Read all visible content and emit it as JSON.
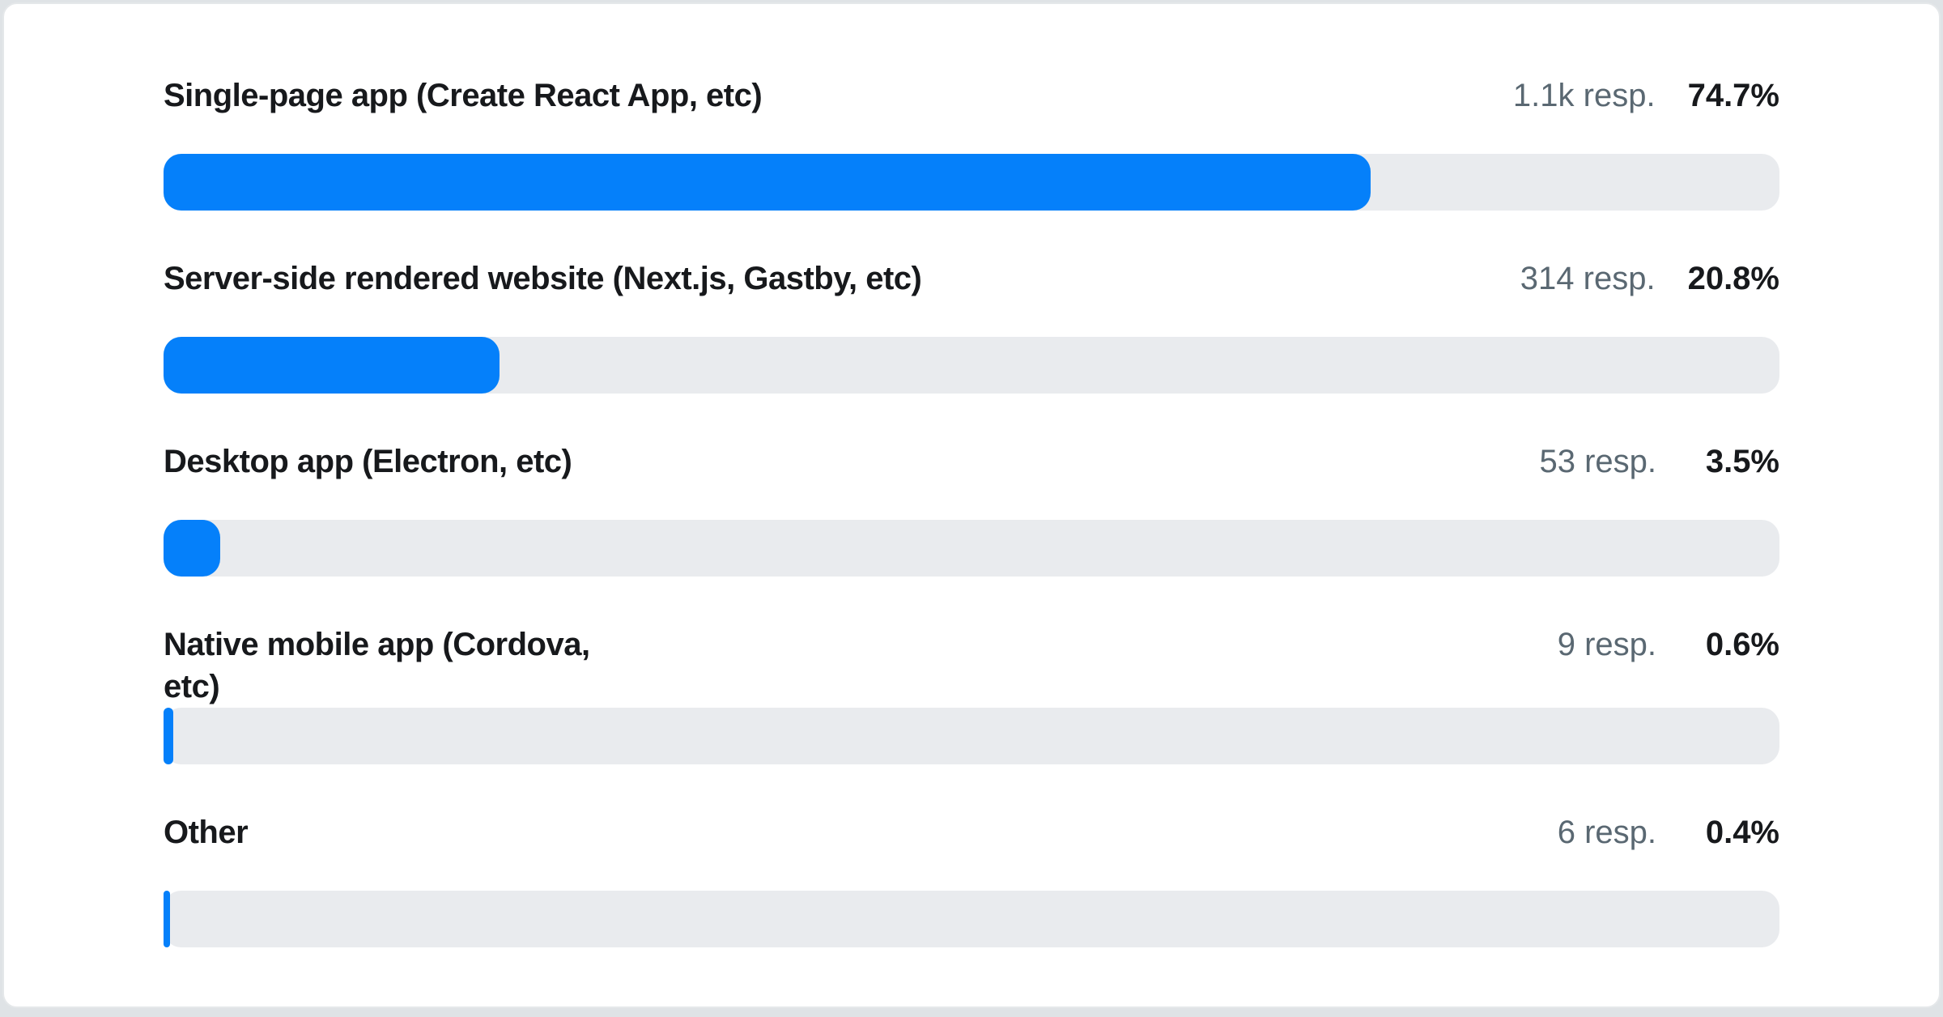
{
  "chart_data": {
    "type": "bar",
    "orientation": "horizontal",
    "title": "",
    "unit": "%",
    "xlim": [
      0,
      100
    ],
    "grid": false,
    "legend": "none",
    "categories": [
      "Single-page app (Create React App, etc)",
      "Server-side rendered website (Next.js, Gastby, etc)",
      "Desktop app (Electron, etc)",
      "Native mobile app (Cordova, etc)",
      "Other"
    ],
    "values": [
      74.7,
      20.8,
      3.5,
      0.6,
      0.4
    ],
    "value_labels": [
      "74.7%",
      "20.8%",
      "3.5%",
      "0.6%",
      "0.4%"
    ],
    "response_counts": [
      "1.1k resp.",
      "314 resp.",
      "53 resp.",
      "9 resp.",
      "6 resp."
    ]
  },
  "rows": [
    {
      "label": "Single-page app (Create React App, etc)",
      "label_lines": [
        "Single-page app (Create React App, etc)"
      ],
      "responses": "1.1k resp.",
      "percent": "74.7%",
      "value": 74.7
    },
    {
      "label": "Server-side rendered website (Next.js, Gastby, etc)",
      "label_lines": [
        "Server-side rendered website (Next.js, Gastby, etc)"
      ],
      "responses": "314 resp.",
      "percent": "20.8%",
      "value": 20.8
    },
    {
      "label": "Desktop app (Electron, etc)",
      "label_lines": [
        "Desktop app (Electron, etc)"
      ],
      "responses": "53 resp.",
      "percent": "3.5%",
      "value": 3.5
    },
    {
      "label": "Native mobile app (Cordova, etc)",
      "label_lines": [
        "Native mobile app (Cordova,",
        "etc)"
      ],
      "responses": "9 resp.",
      "percent": "0.6%",
      "value": 0.6
    },
    {
      "label": "Other",
      "label_lines": [
        "Other"
      ],
      "responses": "6 resp.",
      "percent": "0.4%",
      "value": 0.4
    }
  ],
  "colors": {
    "bar_fill": "#0580fa",
    "bar_track": "#e9ebee",
    "label_text": "#17191c",
    "responses_text": "#5a6872",
    "percent_text": "#17191c",
    "card_background": "#ffffff",
    "card_border": "#e5e8ea",
    "page_background": "#dfe3e6"
  }
}
